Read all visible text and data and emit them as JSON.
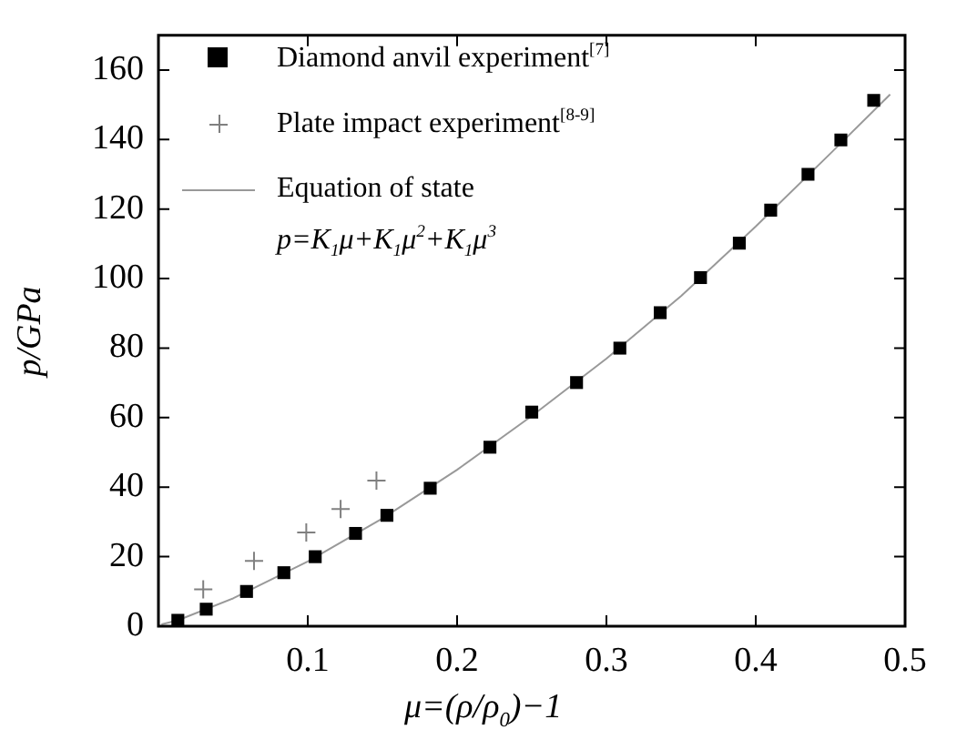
{
  "chart_data": {
    "type": "scatter",
    "xlabel": "μ=(ρ/ρ$_{0}$)−1",
    "ylabel": "p/GPa",
    "xlim": [
      0,
      0.5
    ],
    "ylim": [
      0,
      170
    ],
    "xticks": [
      0.1,
      0.2,
      0.3,
      0.4,
      0.5
    ],
    "yticks": [
      0,
      20,
      40,
      60,
      80,
      100,
      120,
      140,
      160
    ],
    "grid": false,
    "legend": "top left",
    "annotations": [
      "p=K$_{1}$μ+K$_{1}$μ$^{2}$+K$_{1}$μ$^{3}$"
    ],
    "series": [
      {
        "name": "Diamond anvil experiment$^{[7]}$",
        "type": "scatter",
        "marker": "square",
        "color": "#000000",
        "x": [
          0.013,
          0.032,
          0.059,
          0.084,
          0.105,
          0.132,
          0.153,
          0.182,
          0.222,
          0.25,
          0.28,
          0.309,
          0.336,
          0.363,
          0.389,
          0.41,
          0.435,
          0.457,
          0.479
        ],
        "values": [
          1.7,
          4.9,
          10,
          15.4,
          20,
          26.7,
          31.9,
          39.7,
          51.5,
          61.6,
          70.1,
          80,
          90.2,
          100.3,
          110.2,
          119.7,
          130,
          139.9,
          151.3
        ]
      },
      {
        "name": "Plate impact experiment$^{[8-9]}$",
        "type": "scatter",
        "marker": "cross",
        "color": "#808080",
        "x": [
          0.03,
          0.064,
          0.099,
          0.122,
          0.146
        ],
        "values": [
          10.6,
          18.8,
          27,
          33.7,
          41.9
        ]
      },
      {
        "name": "Equation of state",
        "type": "line",
        "marker": "none",
        "line_style": "solid",
        "color": "#999999",
        "x": [
          0.002,
          0.013,
          0.05,
          0.1,
          0.15,
          0.2,
          0.25,
          0.3,
          0.35,
          0.4,
          0.45,
          0.49
        ],
        "values": [
          0.5,
          1.7,
          8,
          18.6,
          31,
          45,
          60.5,
          77,
          95,
          115,
          136,
          153
        ]
      }
    ]
  }
}
